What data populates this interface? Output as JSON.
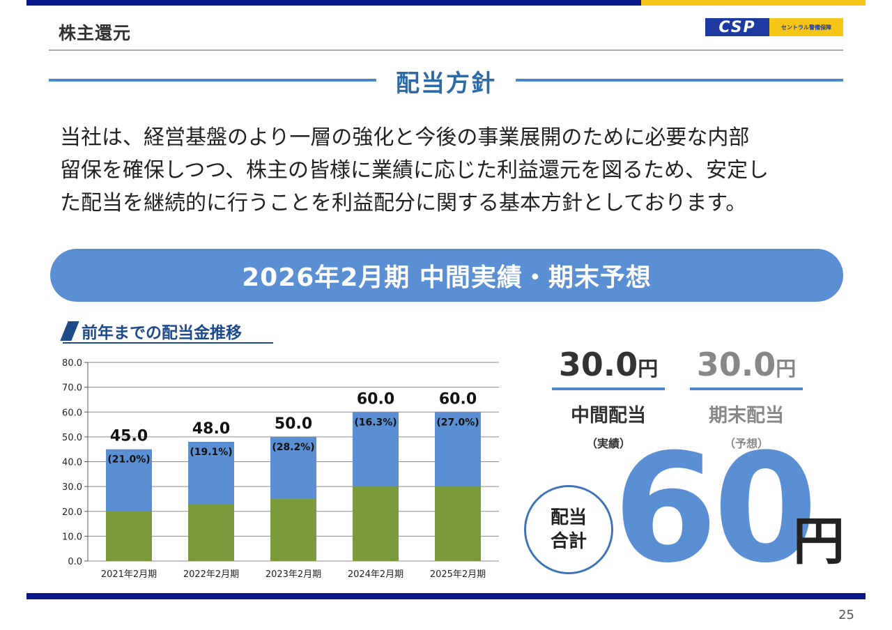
{
  "header": {
    "title": "株主還元",
    "logo": {
      "mark": "CSP",
      "text": "セントラル警備保障"
    }
  },
  "section": {
    "heading": "配当方針"
  },
  "policy_lines": [
    "当社は、経営基盤のより一層の強化と今後の事業展開のために必要な内部",
    "留保を確保しつつ、株主の皆様に業績に応じた利益還元を図るため、安定し",
    "た配当を継続的に行うことを利益配分に関する基本方針としております。"
  ],
  "banner": {
    "text": "2026年2月期 中間実績・期末予想"
  },
  "chart_title": "前年までの配当金推移",
  "chart_data": {
    "type": "bar",
    "stacked": true,
    "categories": [
      "2021年2月期",
      "2022年2月期",
      "2023年2月期",
      "2024年2月期",
      "2025年2月期"
    ],
    "series": [
      {
        "color": "#7a9a3b",
        "values": [
          20.0,
          23.0,
          25.0,
          30.0,
          30.0
        ]
      },
      {
        "color": "#5b8fd3",
        "values": [
          25.0,
          25.0,
          25.0,
          30.0,
          30.0
        ]
      }
    ],
    "totals": [
      "45.0",
      "48.0",
      "50.0",
      "60.0",
      "60.0"
    ],
    "payout_labels": [
      "(21.0%)",
      "(19.1%)",
      "(28.2%)",
      "(16.3%)",
      "(27.0%)"
    ],
    "ylim": [
      0,
      80
    ],
    "yticks": [
      "0.0",
      "10.0",
      "20.0",
      "30.0",
      "40.0",
      "50.0",
      "60.0",
      "70.0",
      "80.0"
    ],
    "grid": true
  },
  "interim": {
    "amount": "30.0",
    "unit": "円",
    "label": "中間配当",
    "sub": "（実績）",
    "color": "#333333",
    "rule_color": "#4a86c8"
  },
  "yearend": {
    "amount": "30.0",
    "unit": "円",
    "label": "期末配当",
    "sub": "（予想）",
    "color": "#888888",
    "rule_color": "#4a86c8"
  },
  "total": {
    "label_line1": "配当",
    "label_line2": "合計",
    "value": "60",
    "unit": "円"
  },
  "page_number": "25"
}
